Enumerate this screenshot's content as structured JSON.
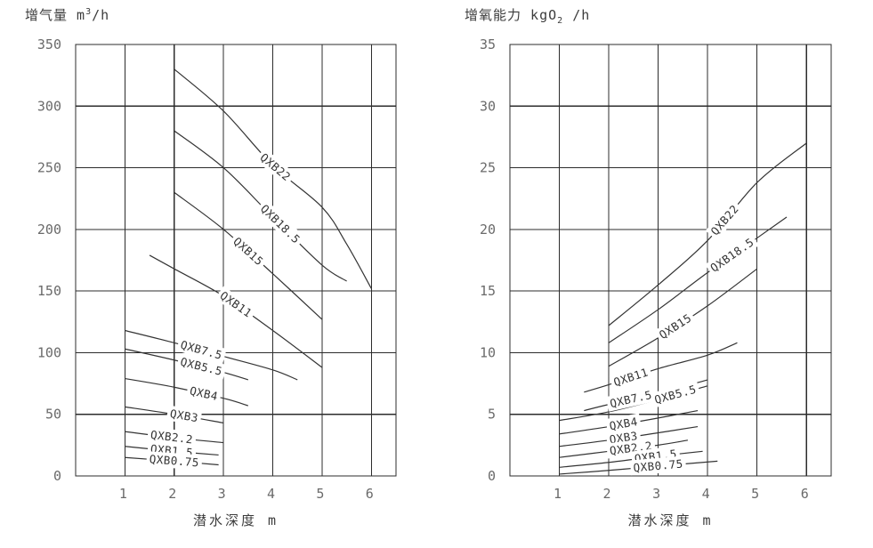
{
  "page": {
    "colors": {
      "line": "#2c2c2c",
      "curve": "#343434",
      "tick_text": "#6a6a6a",
      "label_text": "#333333",
      "background": "#ffffff"
    }
  },
  "chart_data": [
    {
      "type": "line",
      "title": {
        "main": "增气量",
        "unit": "m",
        "sup": "3",
        "suffix": "/h"
      },
      "xlabel": "潜水深度 m",
      "x_ticks": [
        1,
        2,
        3,
        4,
        5,
        6
      ],
      "y_ticks": [
        0,
        50,
        100,
        150,
        200,
        250,
        300,
        350
      ],
      "x_range": [
        0,
        6.5
      ],
      "y_range": [
        0,
        350
      ],
      "grid": true,
      "legend_position": "on-line-labels",
      "series": [
        {
          "name": "QXB22",
          "label_x": 4.05,
          "x": [
            2,
            3,
            4,
            5,
            5.5,
            6
          ],
          "y": [
            330,
            296,
            252,
            218,
            188,
            152
          ]
        },
        {
          "name": "QXB18.5",
          "label_x": 4.15,
          "x": [
            2,
            3,
            4,
            5,
            5.5
          ],
          "y": [
            280,
            250,
            210,
            171,
            158
          ]
        },
        {
          "name": "QXB15",
          "label_x": 3.5,
          "x": [
            2,
            3,
            4,
            5
          ],
          "y": [
            230,
            200,
            164,
            127
          ]
        },
        {
          "name": "QXB11",
          "label_x": 3.25,
          "x": [
            1.5,
            2,
            3,
            4,
            5
          ],
          "y": [
            179,
            168,
            146,
            118,
            88
          ]
        },
        {
          "name": "QXB7.5",
          "label_x": 2.55,
          "x": [
            1,
            2,
            3,
            4,
            4.5
          ],
          "y": [
            118,
            108,
            97,
            86,
            78
          ]
        },
        {
          "name": "QXB5.5",
          "label_x": 2.55,
          "x": [
            1,
            2,
            3,
            3.5
          ],
          "y": [
            103,
            94,
            84,
            78
          ]
        },
        {
          "name": "QXB4",
          "label_x": 2.6,
          "x": [
            1,
            2,
            3,
            3.5
          ],
          "y": [
            79,
            72,
            63,
            57
          ]
        },
        {
          "name": "QXB3",
          "label_x": 2.2,
          "x": [
            1,
            2,
            3
          ],
          "y": [
            56,
            50,
            43
          ]
        },
        {
          "name": "QXB2.2",
          "label_x": 1.95,
          "x": [
            1,
            2,
            3
          ],
          "y": [
            36,
            31,
            27
          ]
        },
        {
          "name": "QXB1.5",
          "label_x": 1.95,
          "x": [
            1,
            2,
            2.9
          ],
          "y": [
            24,
            20,
            17
          ]
        },
        {
          "name": "QXB0.75",
          "label_x": 2.0,
          "x": [
            1,
            2,
            2.9
          ],
          "y": [
            15,
            12,
            9
          ]
        }
      ]
    },
    {
      "type": "line",
      "title": {
        "main": "增氧能力",
        "unit": "kgO",
        "sub": "2",
        "suffix": " /h"
      },
      "xlabel": "潜水深度 m",
      "x_ticks": [
        1,
        2,
        3,
        4,
        5,
        6
      ],
      "y_ticks": [
        0,
        5,
        10,
        15,
        20,
        25,
        30,
        35
      ],
      "x_range": [
        0,
        6.5
      ],
      "y_range": [
        0,
        35
      ],
      "grid": true,
      "legend_position": "on-line-labels",
      "series": [
        {
          "name": "QXB22",
          "label_x": 4.35,
          "x": [
            2,
            3,
            4,
            5,
            6
          ],
          "y": [
            12.2,
            15.5,
            19.1,
            23.8,
            27
          ]
        },
        {
          "name": "QXB18.5",
          "label_x": 4.5,
          "x": [
            2,
            3,
            4,
            5,
            5.6
          ],
          "y": [
            10.8,
            13.5,
            16.5,
            19.3,
            21
          ]
        },
        {
          "name": "QXB15",
          "label_x": 3.35,
          "x": [
            2,
            3,
            4,
            5
          ],
          "y": [
            8.9,
            11.2,
            13.8,
            16.8
          ]
        },
        {
          "name": "QXB11",
          "label_x": 2.45,
          "x": [
            1.5,
            2,
            3,
            4,
            4.6
          ],
          "y": [
            6.8,
            7.4,
            8.7,
            9.8,
            10.8
          ]
        },
        {
          "name": "QXB7.5",
          "label_x": 2.45,
          "x": [
            1.5,
            2,
            3,
            4
          ],
          "y": [
            5.3,
            5.8,
            6.7,
            7.8
          ]
        },
        {
          "name": "QXB5.5",
          "label_x": 3.35,
          "x": [
            1,
            2,
            3,
            4
          ],
          "y": [
            4.5,
            5.2,
            6.2,
            7.3
          ]
        },
        {
          "name": "QXB4",
          "label_x": 2.3,
          "x": [
            1,
            2,
            3,
            3.8
          ],
          "y": [
            3.4,
            4.0,
            4.7,
            5.3
          ]
        },
        {
          "name": "QXB3",
          "label_x": 2.3,
          "x": [
            1,
            2,
            3,
            3.8
          ],
          "y": [
            2.4,
            2.9,
            3.5,
            4.0
          ]
        },
        {
          "name": "QXB2.2",
          "label_x": 2.45,
          "x": [
            1,
            2,
            3,
            3.6
          ],
          "y": [
            1.5,
            2.0,
            2.5,
            2.9
          ]
        },
        {
          "name": "QXB1.5",
          "label_x": 2.95,
          "x": [
            1,
            2,
            3,
            3.9
          ],
          "y": [
            0.7,
            1.1,
            1.6,
            2.0
          ]
        },
        {
          "name": "QXB0.75",
          "label_x": 3.0,
          "x": [
            1,
            2,
            3,
            4.2
          ],
          "y": [
            0.15,
            0.45,
            0.8,
            1.2
          ]
        }
      ]
    }
  ]
}
